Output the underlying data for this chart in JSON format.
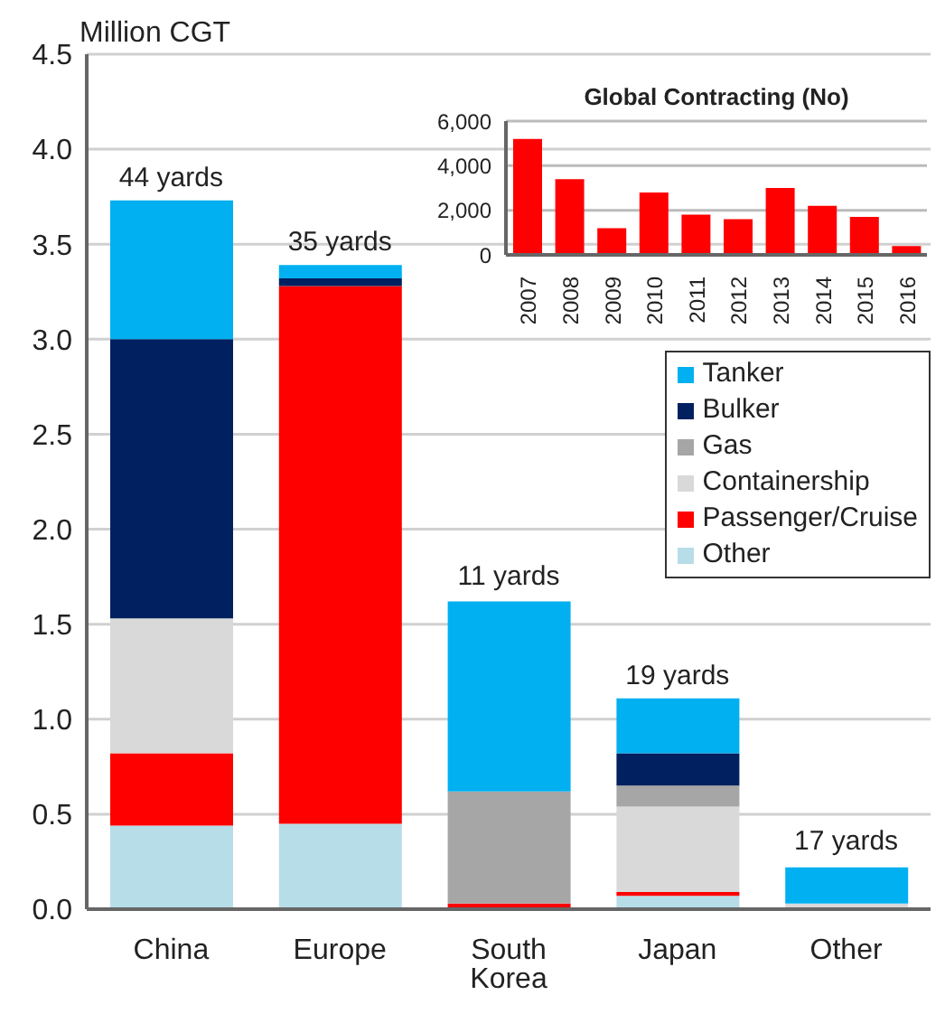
{
  "chart_data": [
    {
      "type": "bar",
      "stacked": true,
      "ylabel": "Million CGT",
      "categories": [
        "China",
        "Europe",
        "South Korea",
        "Japan",
        "Other"
      ],
      "series": [
        {
          "name": "Other",
          "color": "#b7dde8",
          "values": [
            0.44,
            0.45,
            null,
            0.07,
            null
          ]
        },
        {
          "name": "Passenger/Cruise",
          "color": "#ff0000",
          "values": [
            0.38,
            2.83,
            0.03,
            0.02,
            0
          ]
        },
        {
          "name": "Containership",
          "color": "#d9d9d9",
          "values": [
            0.71,
            0,
            0,
            0.45,
            0.03
          ]
        },
        {
          "name": "Gas",
          "color": "#a6a6a6",
          "values": [
            0,
            0,
            0.59,
            0.11,
            0
          ]
        },
        {
          "name": "Bulker",
          "color": "#002060",
          "values": [
            1.47,
            0.04,
            0,
            0.17,
            0
          ]
        },
        {
          "name": "Tanker",
          "color": "#00b0f0",
          "values": [
            0.73,
            0.07,
            1.0,
            0.29,
            0.19
          ]
        }
      ],
      "annotations": [
        {
          "text": "44 yards",
          "x": "China",
          "y": 3.73
        },
        {
          "text": "35 yards",
          "x": "Europe",
          "y": 3.39
        },
        {
          "text": "11 yards",
          "x": "South Korea",
          "y": 1.63
        },
        {
          "text": "19 yards",
          "x": "Japan",
          "y": 1.11
        },
        {
          "text": "17 yards",
          "x": "Other",
          "y": 0.24
        }
      ],
      "ylim": [
        0,
        4.5
      ],
      "yticks": [
        {
          "value": 0,
          "label": "0.0"
        },
        {
          "value": 0.5,
          "label": "0.5"
        },
        {
          "value": 1,
          "label": "1.0"
        },
        {
          "value": 1.5,
          "label": "1.5"
        },
        {
          "value": 2,
          "label": "2.0"
        },
        {
          "value": 2.5,
          "label": "2.5"
        },
        {
          "value": 3,
          "label": "3.0"
        },
        {
          "value": 3.5,
          "label": "3.5"
        },
        {
          "value": 4,
          "label": "4.0"
        },
        {
          "value": 4.5,
          "label": "4.5"
        }
      ],
      "grid": "y",
      "legend": "right"
    },
    {
      "type": "bar",
      "title": "Global Contracting (No)",
      "categories": [
        "2007",
        "2008",
        "2009",
        "2010",
        "2011",
        "2012",
        "2013",
        "2014",
        "2015",
        "2016"
      ],
      "values": [
        5200,
        3400,
        1200,
        2800,
        1800,
        1600,
        3000,
        2200,
        1700,
        400
      ],
      "color": "#ff0000",
      "ylim": [
        0,
        6000
      ],
      "yticks": [
        {
          "value": 0,
          "label": "0"
        },
        {
          "value": 2000,
          "label": "2,000"
        },
        {
          "value": 4000,
          "label": "4,000"
        },
        {
          "value": 6000,
          "label": "6,000"
        }
      ],
      "grid": "y"
    }
  ]
}
